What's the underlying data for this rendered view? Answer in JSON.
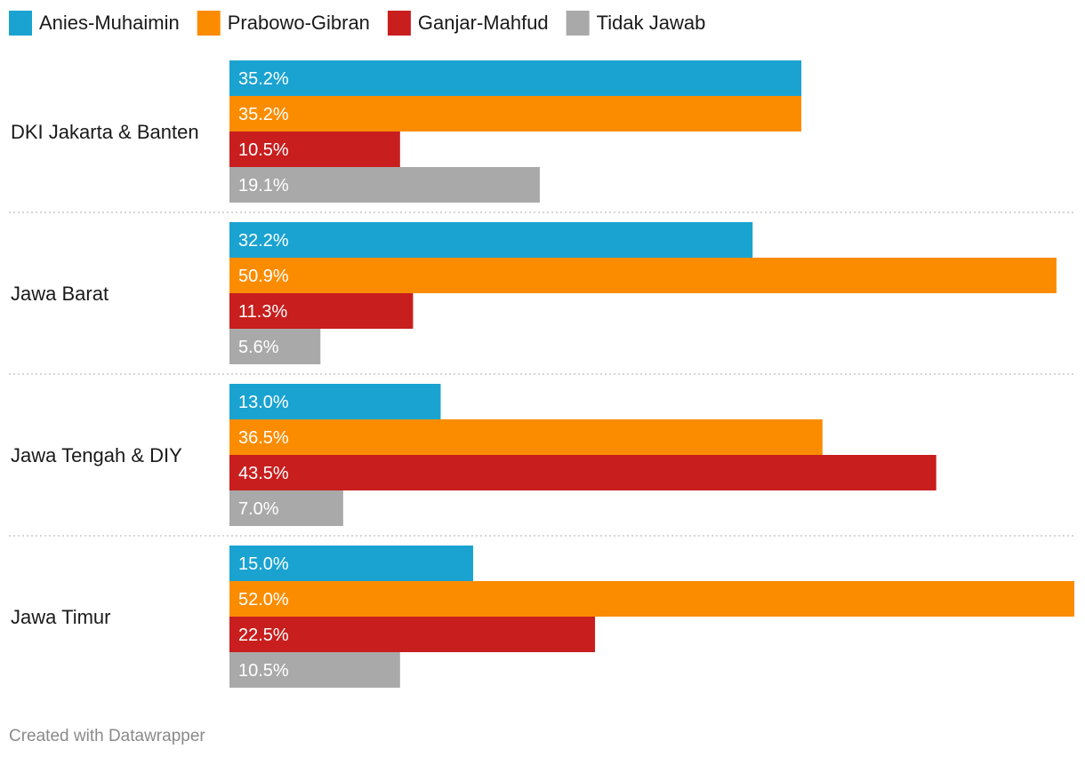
{
  "chart_data": {
    "type": "bar",
    "orientation": "horizontal",
    "title": "",
    "xlabel": "",
    "ylabel": "",
    "xlim": [
      0,
      52
    ],
    "unit": "%",
    "legend_position": "top-left",
    "grid": false,
    "categories": [
      "DKI Jakarta & Banten",
      "Jawa Barat",
      "Jawa Tengah & DIY",
      "Jawa Timur"
    ],
    "series": [
      {
        "name": "Anies-Muhaimin",
        "color": "#1aa3d1",
        "values": [
          35.2,
          32.2,
          13.0,
          15.0
        ],
        "labels": [
          "35.2%",
          "32.2%",
          "13.0%",
          "15.0%"
        ]
      },
      {
        "name": "Prabowo-Gibran",
        "color": "#fb8c00",
        "values": [
          35.2,
          50.9,
          36.5,
          52.0
        ],
        "labels": [
          "35.2%",
          "50.9%",
          "36.5%",
          "52.0%"
        ]
      },
      {
        "name": "Ganjar-Mahfud",
        "color": "#c81e1e",
        "values": [
          10.5,
          11.3,
          43.5,
          22.5
        ],
        "labels": [
          "10.5%",
          "11.3%",
          "43.5%",
          "22.5%"
        ]
      },
      {
        "name": "Tidak Jawab",
        "color": "#a9a9a9",
        "values": [
          19.1,
          5.6,
          7.0,
          10.5
        ],
        "labels": [
          "19.1%",
          "5.6%",
          "7.0%",
          "10.5%"
        ]
      }
    ],
    "credit": "Created with Datawrapper"
  }
}
